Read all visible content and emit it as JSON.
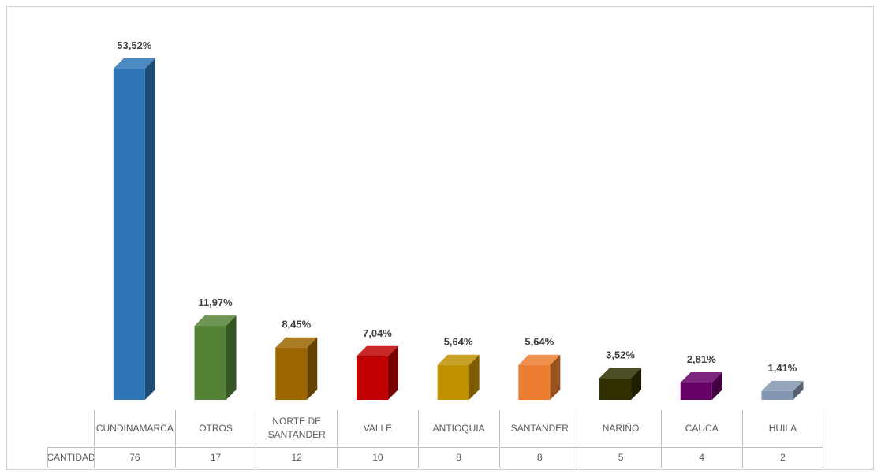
{
  "chart_data": {
    "type": "bar3d",
    "categories": [
      "CUNDINAMARCA",
      "OTROS",
      "NORTE DE SANTANDER",
      "VALLE",
      "ANTIOQUIA",
      "SANTANDER",
      "NARIÑO",
      "CAUCA",
      "HUILA"
    ],
    "values": [
      53.52,
      11.97,
      8.45,
      7.04,
      5.64,
      5.64,
      3.52,
      2.81,
      1.41
    ],
    "value_labels": [
      "53,52%",
      "11,97%",
      "8,45%",
      "7,04%",
      "5,64%",
      "5,64%",
      "3,52%",
      "2,81%",
      "1,41%"
    ],
    "colors": [
      "#2e75b6",
      "#548235",
      "#9c6500",
      "#c00000",
      "#bf9000",
      "#ed7d31",
      "#2f2f00",
      "#660066",
      "#8497b0"
    ],
    "table": {
      "row_label": "CANTIDAD",
      "values": [
        76,
        17,
        12,
        10,
        8,
        8,
        5,
        4,
        2
      ]
    }
  }
}
